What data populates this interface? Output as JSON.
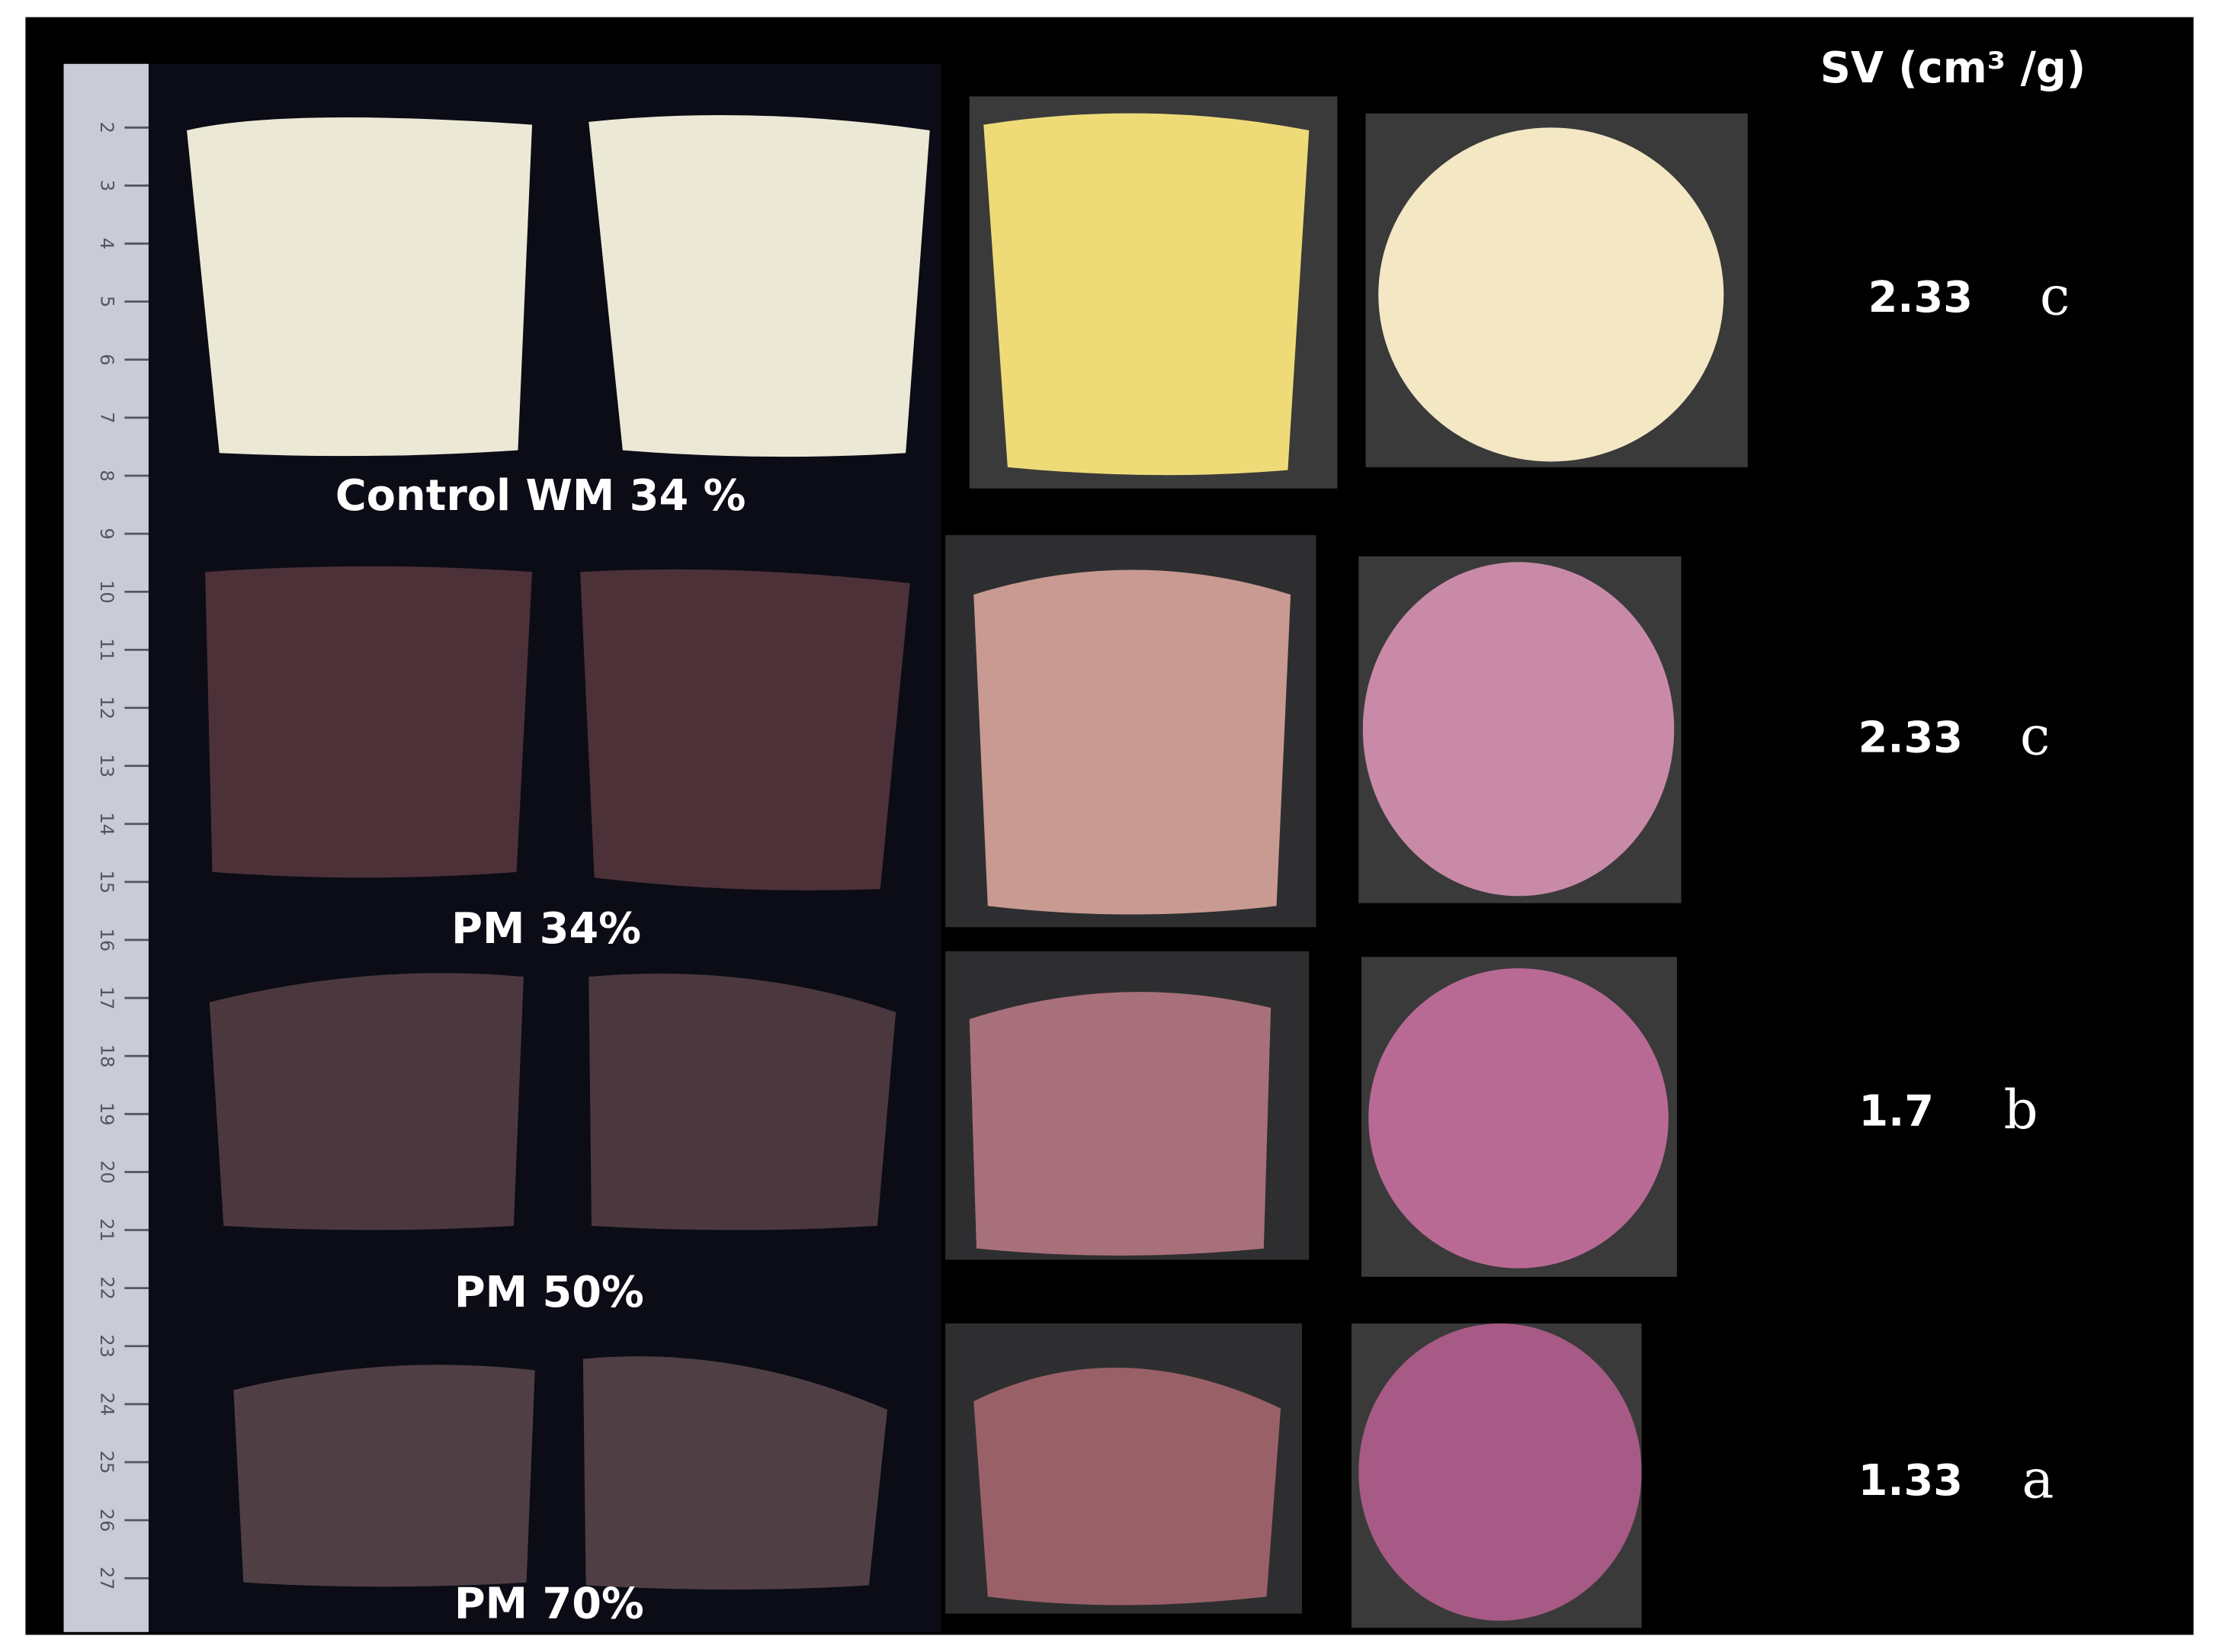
{
  "header": {
    "sv_label": "SV (cm³ /g)"
  },
  "ruler": [
    "2",
    "3",
    "4",
    "5",
    "6",
    "7",
    "8",
    "9",
    "10",
    "11",
    "12",
    "13",
    "14",
    "15",
    "16",
    "17",
    "18",
    "19",
    "20",
    "21",
    "22",
    "23",
    "24",
    "25",
    "26",
    "27"
  ],
  "rows": [
    {
      "label": "Control WM 34 %",
      "sv": 2.33,
      "group": "c"
    },
    {
      "label": "PM 34%",
      "sv": 2.33,
      "group": "c"
    },
    {
      "label": "PM 50%",
      "sv": 1.7,
      "group": "b"
    },
    {
      "label": "PM 70%",
      "sv": 1.33,
      "group": "a"
    }
  ]
}
